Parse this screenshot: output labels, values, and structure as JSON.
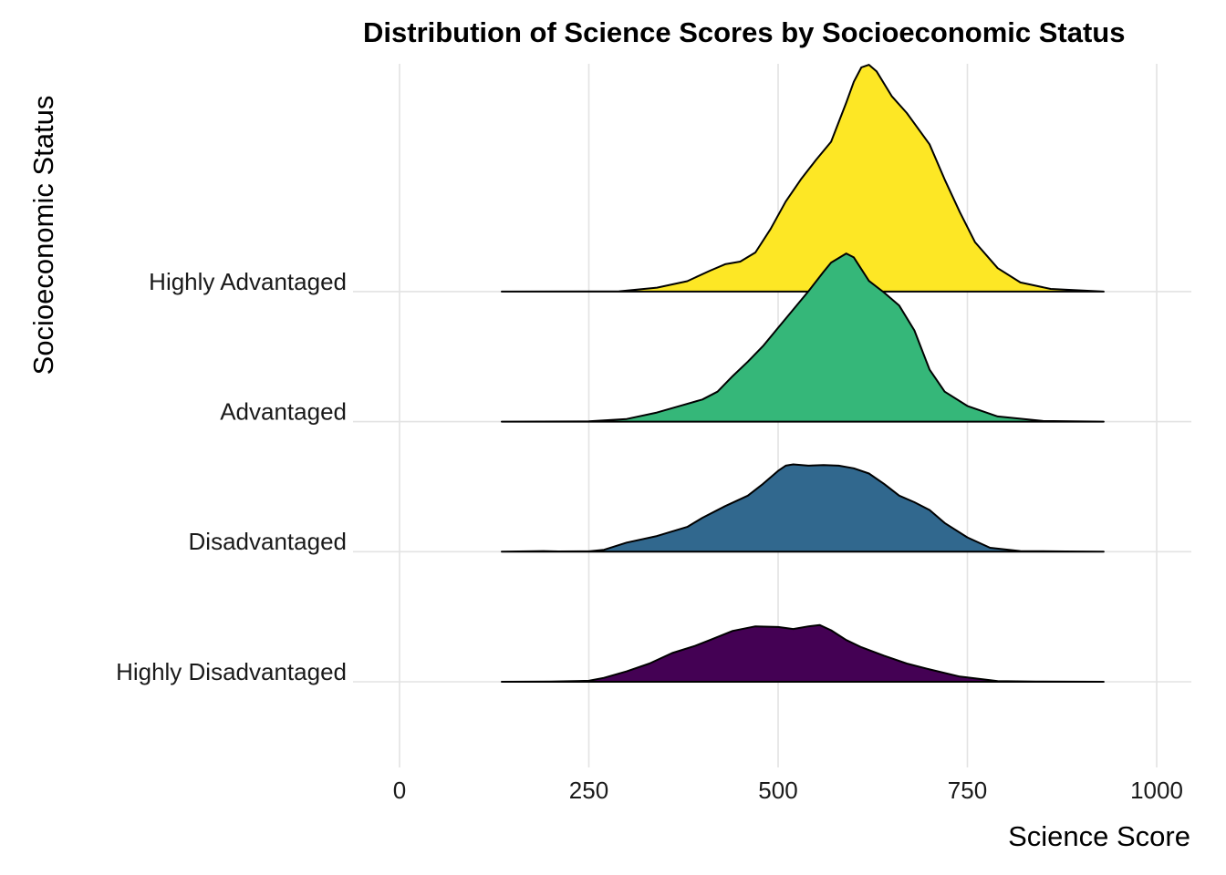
{
  "chart_data": {
    "type": "ridgeline",
    "title": "Distribution of Science Scores by Socioeconomic Status",
    "xlabel": "Science Score",
    "ylabel": "Socioeconomic Status",
    "xlim": [
      0,
      1000
    ],
    "x_ticks": [
      0,
      250,
      500,
      750,
      1000
    ],
    "x_tick_labels": [
      "0",
      "250",
      "500",
      "750",
      "1000"
    ],
    "grid": true,
    "legend": "none",
    "categories": [
      "Highly Disadvantaged",
      "Disadvantaged",
      "Advantaged",
      "Highly Advantaged"
    ],
    "series": [
      {
        "name": "Highly Disadvantaged",
        "color": "#440154",
        "x": [
          135,
          200,
          250,
          270,
          300,
          330,
          360,
          390,
          410,
          440,
          470,
          500,
          520,
          540,
          555,
          570,
          590,
          610,
          640,
          670,
          700,
          740,
          790,
          840,
          930
        ],
        "density": [
          0.0,
          0.002,
          0.008,
          0.03,
          0.08,
          0.14,
          0.22,
          0.275,
          0.32,
          0.39,
          0.425,
          0.42,
          0.405,
          0.425,
          0.435,
          0.395,
          0.32,
          0.265,
          0.2,
          0.14,
          0.095,
          0.04,
          0.005,
          0.002,
          0.0
        ]
      },
      {
        "name": "Disadvantaged",
        "color": "#31688E",
        "x": [
          135,
          190,
          210,
          250,
          270,
          300,
          340,
          380,
          400,
          430,
          460,
          480,
          500,
          510,
          520,
          540,
          560,
          580,
          600,
          620,
          640,
          660,
          680,
          700,
          720,
          750,
          780,
          820,
          880,
          930
        ],
        "density": [
          0.0,
          0.005,
          0.002,
          0.003,
          0.015,
          0.07,
          0.12,
          0.19,
          0.26,
          0.35,
          0.43,
          0.52,
          0.62,
          0.66,
          0.67,
          0.66,
          0.665,
          0.66,
          0.64,
          0.6,
          0.52,
          0.43,
          0.38,
          0.32,
          0.22,
          0.11,
          0.03,
          0.005,
          0.002,
          0.0
        ]
      },
      {
        "name": "Advantaged",
        "color": "#35B779",
        "x": [
          135,
          250,
          300,
          340,
          370,
          400,
          420,
          440,
          460,
          480,
          500,
          520,
          540,
          560,
          570,
          590,
          600,
          610,
          620,
          640,
          660,
          680,
          700,
          720,
          750,
          790,
          850,
          930
        ],
        "density": [
          0.0,
          0.002,
          0.02,
          0.07,
          0.12,
          0.17,
          0.23,
          0.35,
          0.46,
          0.58,
          0.72,
          0.86,
          1.0,
          1.15,
          1.22,
          1.29,
          1.26,
          1.17,
          1.08,
          0.99,
          0.89,
          0.7,
          0.4,
          0.23,
          0.12,
          0.04,
          0.005,
          0.0
        ]
      },
      {
        "name": "Highly Advantaged",
        "color": "#FDE725",
        "x": [
          135,
          290,
          340,
          380,
          410,
          430,
          450,
          470,
          490,
          510,
          530,
          550,
          570,
          590,
          600,
          610,
          620,
          630,
          650,
          670,
          700,
          720,
          740,
          760,
          790,
          820,
          860,
          930
        ],
        "density": [
          0.0,
          0.002,
          0.03,
          0.08,
          0.16,
          0.21,
          0.23,
          0.3,
          0.48,
          0.69,
          0.86,
          1.01,
          1.15,
          1.45,
          1.61,
          1.72,
          1.74,
          1.69,
          1.5,
          1.37,
          1.13,
          0.86,
          0.61,
          0.38,
          0.18,
          0.07,
          0.02,
          0.0
        ]
      }
    ]
  }
}
